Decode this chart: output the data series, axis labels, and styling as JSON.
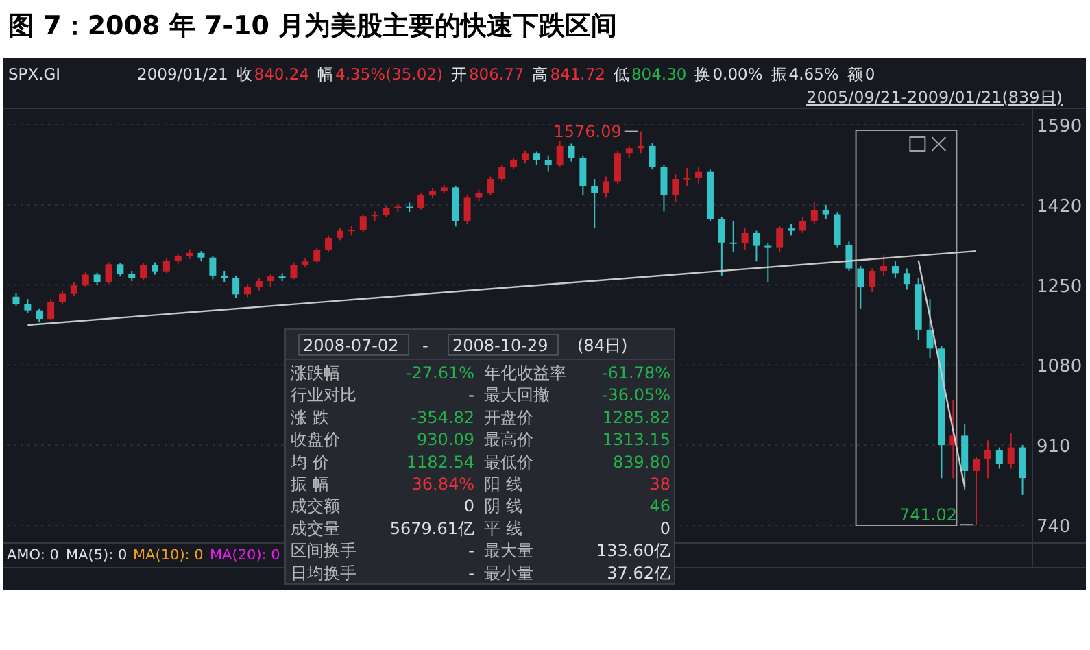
{
  "chart_data": {
    "type": "candlestick",
    "title": "图 7：2008 年 7-10 月为美股主要的快速下跌区间",
    "ylim": [
      705,
      1622
    ],
    "yticks": [
      740,
      910,
      1080,
      1250,
      1420,
      1590
    ],
    "tick_labels": "y",
    "grid": "y",
    "categories": [
      null,
      null,
      null,
      null,
      null,
      null,
      null,
      null,
      null,
      null,
      null,
      null,
      null,
      null,
      null,
      null,
      null,
      null,
      null,
      null,
      null,
      null,
      null,
      null,
      null,
      null,
      null,
      null,
      null,
      null,
      null,
      null,
      null,
      null,
      null,
      null,
      null,
      null,
      null,
      null,
      null,
      null,
      null,
      null,
      null,
      null,
      null,
      null,
      null,
      null,
      null,
      null,
      null,
      null,
      null,
      null,
      null,
      null,
      null,
      null,
      null,
      null,
      null,
      null,
      null,
      null,
      null,
      null,
      null,
      null,
      null,
      null,
      null,
      null,
      null,
      null,
      null,
      null,
      null,
      null,
      null,
      null,
      null,
      null,
      null,
      null,
      null,
      null
    ],
    "ohlc": [
      [
        1225,
        1232,
        1205,
        1210
      ],
      [
        1210,
        1220,
        1190,
        1196
      ],
      [
        1196,
        1200,
        1172,
        1178
      ],
      [
        1178,
        1220,
        1175,
        1214
      ],
      [
        1214,
        1238,
        1208,
        1231
      ],
      [
        1231,
        1256,
        1226,
        1249
      ],
      [
        1249,
        1278,
        1245,
        1272
      ],
      [
        1272,
        1276,
        1250,
        1256
      ],
      [
        1256,
        1298,
        1252,
        1294
      ],
      [
        1294,
        1297,
        1268,
        1273
      ],
      [
        1273,
        1280,
        1258,
        1265
      ],
      [
        1265,
        1297,
        1260,
        1292
      ],
      [
        1292,
        1298,
        1272,
        1279
      ],
      [
        1279,
        1306,
        1275,
        1301
      ],
      [
        1301,
        1316,
        1295,
        1311
      ],
      [
        1311,
        1326,
        1305,
        1318
      ],
      [
        1318,
        1322,
        1300,
        1308
      ],
      [
        1308,
        1312,
        1262,
        1270
      ],
      [
        1270,
        1280,
        1256,
        1265
      ],
      [
        1265,
        1270,
        1223,
        1230
      ],
      [
        1230,
        1252,
        1224,
        1246
      ],
      [
        1246,
        1265,
        1238,
        1258
      ],
      [
        1258,
        1274,
        1245,
        1268
      ],
      [
        1268,
        1275,
        1258,
        1265
      ],
      [
        1265,
        1298,
        1262,
        1292
      ],
      [
        1292,
        1306,
        1288,
        1300
      ],
      [
        1300,
        1330,
        1296,
        1325
      ],
      [
        1325,
        1355,
        1320,
        1350
      ],
      [
        1350,
        1370,
        1345,
        1365
      ],
      [
        1365,
        1375,
        1355,
        1367
      ],
      [
        1367,
        1400,
        1362,
        1396
      ],
      [
        1396,
        1406,
        1385,
        1399
      ],
      [
        1399,
        1418,
        1394,
        1413
      ],
      [
        1413,
        1422,
        1405,
        1416
      ],
      [
        1416,
        1425,
        1405,
        1414
      ],
      [
        1414,
        1444,
        1410,
        1440
      ],
      [
        1440,
        1456,
        1434,
        1450
      ],
      [
        1450,
        1462,
        1444,
        1457
      ],
      [
        1457,
        1460,
        1374,
        1385
      ],
      [
        1385,
        1440,
        1380,
        1435
      ],
      [
        1435,
        1452,
        1428,
        1445
      ],
      [
        1445,
        1480,
        1440,
        1475
      ],
      [
        1475,
        1505,
        1470,
        1500
      ],
      [
        1500,
        1520,
        1495,
        1515
      ],
      [
        1515,
        1535,
        1508,
        1530
      ],
      [
        1530,
        1534,
        1505,
        1515
      ],
      [
        1515,
        1525,
        1490,
        1505
      ],
      [
        1505,
        1555,
        1500,
        1545
      ],
      [
        1545,
        1550,
        1512,
        1520
      ],
      [
        1520,
        1525,
        1440,
        1460
      ],
      [
        1460,
        1475,
        1370,
        1445
      ],
      [
        1445,
        1480,
        1435,
        1470
      ],
      [
        1470,
        1535,
        1465,
        1530
      ],
      [
        1530,
        1545,
        1520,
        1540
      ],
      [
        1540,
        1576.09,
        1530,
        1545
      ],
      [
        1545,
        1552,
        1495,
        1500
      ],
      [
        1500,
        1505,
        1406,
        1440
      ],
      [
        1440,
        1485,
        1425,
        1475
      ],
      [
        1475,
        1498,
        1460,
        1477
      ],
      [
        1477,
        1500,
        1465,
        1490
      ],
      [
        1490,
        1495,
        1385,
        1390
      ],
      [
        1390,
        1395,
        1270,
        1340
      ],
      [
        1340,
        1385,
        1320,
        1338
      ],
      [
        1338,
        1370,
        1325,
        1360
      ],
      [
        1360,
        1365,
        1300,
        1333
      ],
      [
        1333,
        1340,
        1256,
        1330
      ],
      [
        1330,
        1375,
        1320,
        1370
      ],
      [
        1370,
        1380,
        1355,
        1365
      ],
      [
        1365,
        1395,
        1360,
        1385
      ],
      [
        1385,
        1426,
        1380,
        1408
      ],
      [
        1408,
        1420,
        1390,
        1400
      ],
      [
        1400,
        1405,
        1330,
        1335
      ],
      [
        1335,
        1342,
        1280,
        1285
      ],
      [
        1285,
        1290,
        1200,
        1245
      ],
      [
        1245,
        1285,
        1235,
        1280
      ],
      [
        1280,
        1313,
        1270,
        1290
      ],
      [
        1290,
        1300,
        1265,
        1275
      ],
      [
        1275,
        1285,
        1240,
        1252
      ],
      [
        1252,
        1265,
        1133,
        1155
      ],
      [
        1155,
        1220,
        1095,
        1115
      ],
      [
        1115,
        1120,
        840,
        910
      ],
      [
        910,
        1005,
        840,
        930
      ],
      [
        930,
        955,
        815,
        855
      ],
      [
        855,
        885,
        741.02,
        880
      ],
      [
        880,
        920,
        840,
        900
      ],
      [
        900,
        905,
        860,
        870
      ],
      [
        870,
        935,
        860,
        905
      ],
      [
        905,
        910,
        804.3,
        840.24
      ]
    ],
    "series": [
      {
        "type": "line",
        "values": [
          null,
          1165,
          null,
          null,
          null,
          null,
          null,
          null,
          null,
          null,
          null,
          null,
          null,
          null,
          null,
          null,
          null,
          null,
          null,
          null,
          null,
          null,
          null,
          null,
          null,
          null,
          null,
          null,
          null,
          null,
          null,
          null,
          null,
          null,
          null,
          null,
          null,
          null,
          null,
          null,
          null,
          null,
          null,
          null,
          null,
          null,
          null,
          null,
          null,
          null,
          null,
          null,
          null,
          null,
          null,
          null,
          null,
          null,
          null,
          null,
          null,
          null,
          null,
          null,
          null,
          null,
          null,
          null,
          null,
          null,
          null,
          null,
          null,
          null,
          null,
          null,
          null,
          null,
          null,
          null,
          null,
          null,
          null,
          1322,
          null,
          null,
          null,
          null
        ],
        "color": "#c8c8c8"
      },
      {
        "type": "line",
        "values": [
          null,
          null,
          null,
          null,
          null,
          null,
          null,
          null,
          null,
          null,
          null,
          null,
          null,
          null,
          null,
          null,
          null,
          null,
          null,
          null,
          null,
          null,
          null,
          null,
          null,
          null,
          null,
          null,
          null,
          null,
          null,
          null,
          null,
          null,
          null,
          null,
          null,
          null,
          null,
          null,
          null,
          null,
          null,
          null,
          null,
          null,
          null,
          null,
          null,
          null,
          null,
          null,
          null,
          null,
          null,
          null,
          null,
          null,
          null,
          null,
          null,
          null,
          null,
          null,
          null,
          null,
          null,
          null,
          null,
          null,
          null,
          null,
          null,
          null,
          null,
          null,
          null,
          null,
          1302,
          null,
          null,
          null,
          821,
          null,
          null,
          null,
          null,
          null
        ],
        "color": "#c8c8c8"
      }
    ],
    "annotations": [
      "SPX.GI",
      "2009/01/21",
      "收",
      "840.24",
      "幅",
      "4.35%(35.02)",
      "开",
      "806.77",
      "高",
      "841.72",
      "低",
      "804.30",
      "换",
      "0.00%",
      "振",
      "4.65%",
      "额",
      "0",
      "2005/09/21-2009/01/21(839日)",
      "2008-07-02",
      "-",
      "2008-10-29",
      "(84日)",
      "涨跌幅",
      "-27.61%",
      "年化收益率",
      "-61.78%",
      "行业对比",
      "-",
      "最大回撤",
      "-36.05%",
      "涨 跌",
      "-354.82",
      "开盘价",
      "1285.82",
      "收盘价",
      "930.09",
      "最高价",
      "1313.15",
      "均 价",
      "1182.54",
      "最低价",
      "839.80",
      "振 幅",
      "36.84%",
      "阳 线",
      "38",
      "成交额",
      "0",
      "阴 线",
      "46",
      "成交量",
      "5679.61亿",
      "平 线",
      "0",
      "区间换手",
      "-",
      "最大量",
      "133.60亿",
      "日均换手",
      "-",
      "最小量",
      "37.62亿",
      "AMO: 0",
      "MA(5): 0",
      "MA(10): 0",
      "MA(20): 0",
      "1576.09",
      "741.02"
    ]
  }
}
